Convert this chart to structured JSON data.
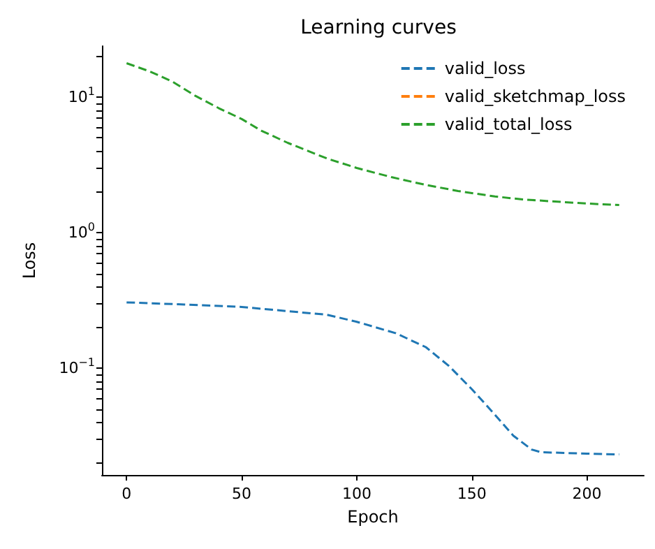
{
  "chart_data": {
    "type": "line",
    "title": "Learning curves",
    "xlabel": "Epoch",
    "ylabel": "Loss",
    "log": "y",
    "grid": false,
    "legend": "top right",
    "marker": "none",
    "line_style": "dashed",
    "xlim": [
      -10.7,
      224.7
    ],
    "xticks": [
      0,
      50,
      100,
      150,
      200
    ],
    "ylim": [
      0.0163,
      23.8
    ],
    "yticks": [
      {
        "value": 0.02,
        "label": null
      },
      {
        "value": 0.03,
        "label": null
      },
      {
        "value": 0.04,
        "label": null
      },
      {
        "value": 0.05,
        "label": null
      },
      {
        "value": 0.06,
        "label": null
      },
      {
        "value": 0.07,
        "label": null
      },
      {
        "value": 0.08,
        "label": null
      },
      {
        "value": 0.09,
        "label": null
      },
      {
        "value": 0.1,
        "label": "10$^{−1}$"
      },
      {
        "value": 0.2,
        "label": null
      },
      {
        "value": 0.3,
        "label": null
      },
      {
        "value": 0.4,
        "label": null
      },
      {
        "value": 0.5,
        "label": null
      },
      {
        "value": 0.6,
        "label": null
      },
      {
        "value": 0.7,
        "label": null
      },
      {
        "value": 0.8,
        "label": null
      },
      {
        "value": 0.9,
        "label": null
      },
      {
        "value": 1,
        "label": "10$^{0}$"
      },
      {
        "value": 2,
        "label": null
      },
      {
        "value": 3,
        "label": null
      },
      {
        "value": 4,
        "label": null
      },
      {
        "value": 5,
        "label": null
      },
      {
        "value": 6,
        "label": null
      },
      {
        "value": 7,
        "label": null
      },
      {
        "value": 8,
        "label": null
      },
      {
        "value": 9,
        "label": null
      },
      {
        "value": 10,
        "label": "10$^{1}$"
      },
      {
        "value": 20,
        "label": null
      }
    ],
    "series": [
      {
        "name": "valid_loss",
        "color": "#1f77b4",
        "x": [
          0,
          25,
          50,
          87,
          100,
          117,
          130,
          140,
          150,
          160,
          168,
          176,
          180,
          200,
          214
        ],
        "values": [
          0.306,
          0.295,
          0.283,
          0.248,
          0.22,
          0.181,
          0.143,
          0.104,
          0.07,
          0.0454,
          0.0318,
          0.0251,
          0.024,
          0.0234,
          0.0231
        ]
      },
      {
        "name": "valid_sketchmap_loss",
        "color": "#ff7f0e"
      },
      {
        "name": "valid_total_loss",
        "color": "#2ca02c",
        "x": [
          0,
          10,
          20,
          30,
          40,
          50,
          58.5,
          70,
          87,
          100,
          115,
          130,
          144,
          160,
          172,
          190,
          200,
          214
        ],
        "values": [
          17.8,
          15.5,
          13,
          10.2,
          8.3,
          6.9,
          5.66,
          4.6,
          3.53,
          3.0,
          2.57,
          2.25,
          2.03,
          1.85,
          1.76,
          1.68,
          1.64,
          1.6
        ]
      }
    ]
  }
}
